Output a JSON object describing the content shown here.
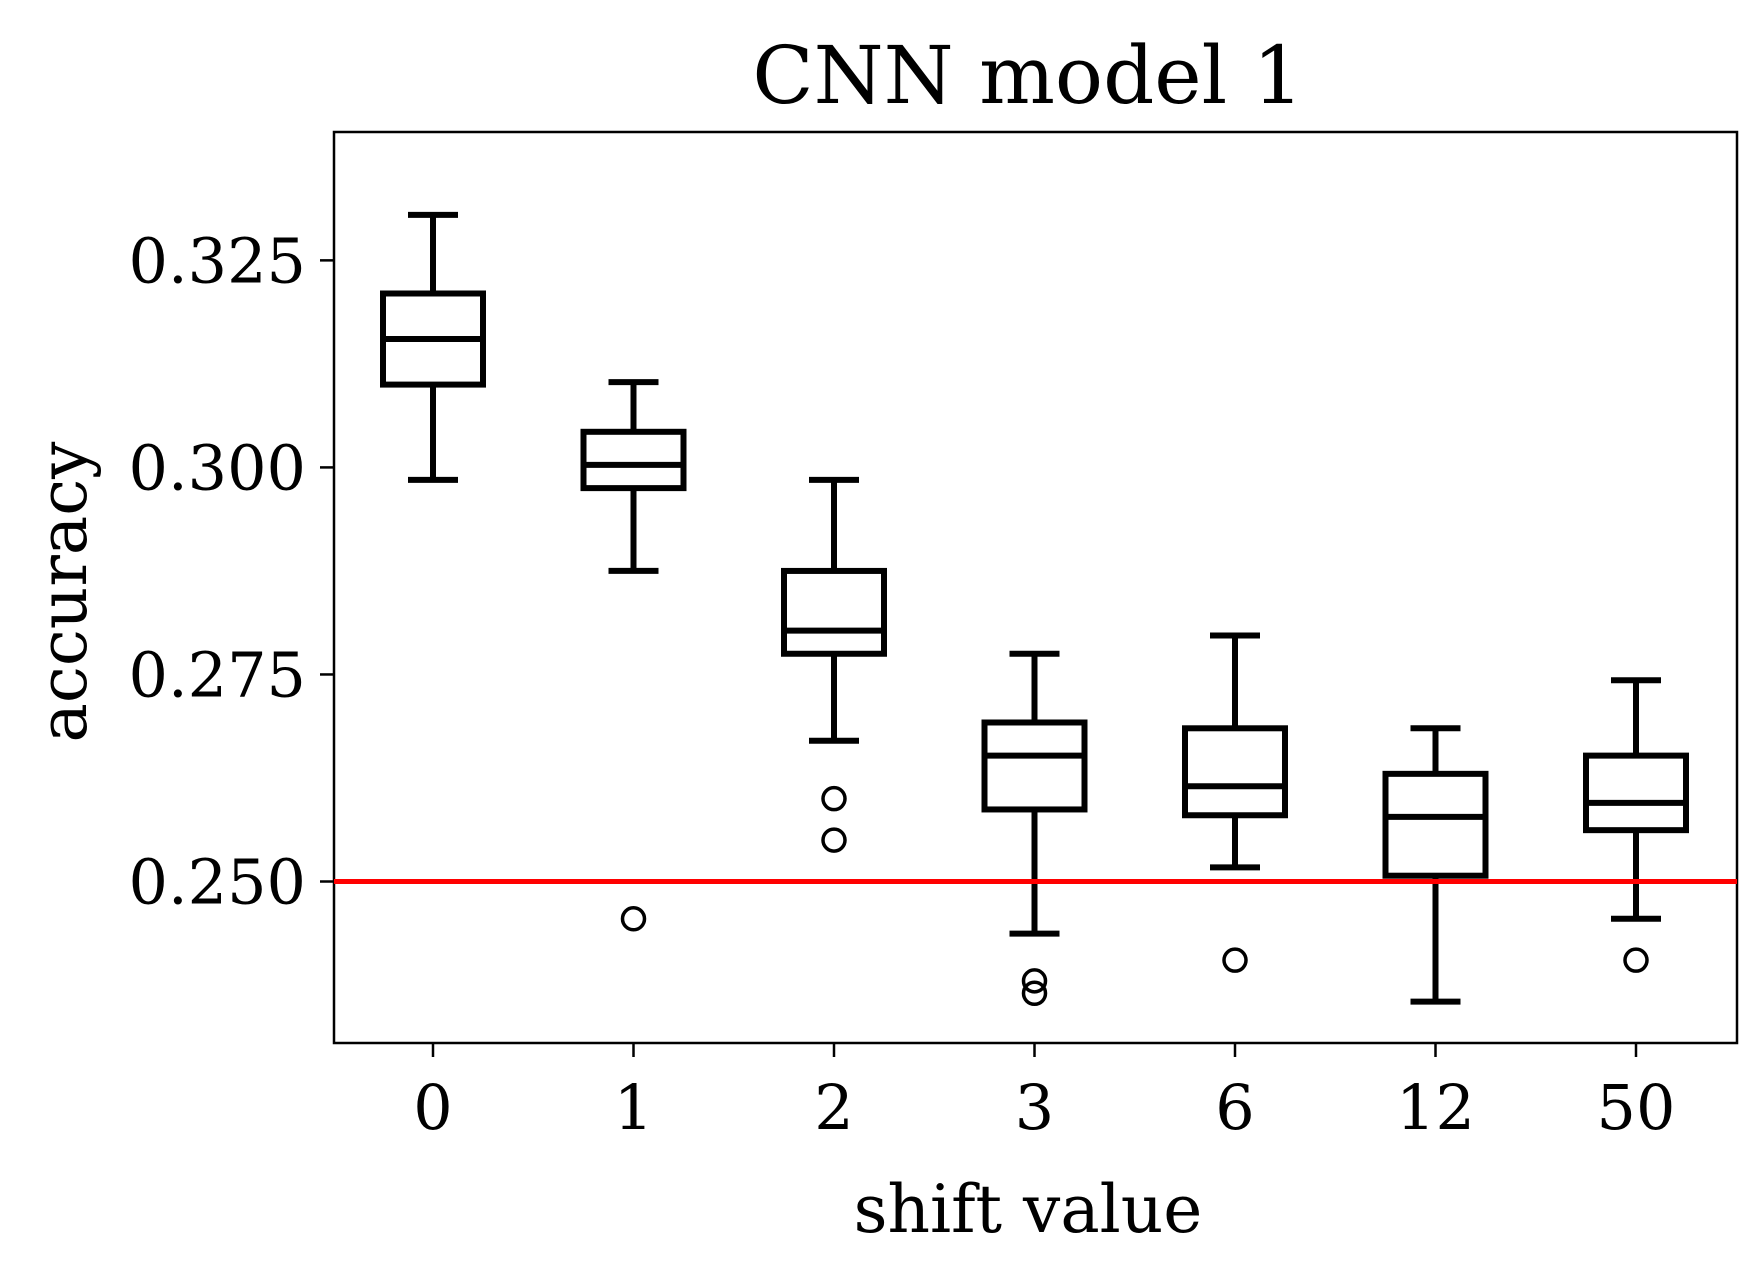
{
  "chart_data": {
    "type": "box",
    "title": "CNN model 1",
    "xlabel": "shift value",
    "ylabel": "accuracy",
    "categories": [
      "0",
      "1",
      "2",
      "3",
      "6",
      "12",
      "50"
    ],
    "ylim": [
      0.2305,
      0.3405
    ],
    "yticks": [
      0.25,
      0.275,
      0.3,
      0.325
    ],
    "ytick_labels": [
      "0.250",
      "0.275",
      "0.300",
      "0.325"
    ],
    "grid": false,
    "reference_line": {
      "y": 0.25,
      "color": "#ff0000"
    },
    "boxes": [
      {
        "category": "0",
        "whisker_low": 0.2985,
        "q1": 0.31,
        "median": 0.3155,
        "q3": 0.321,
        "whisker_high": 0.3305,
        "outliers": []
      },
      {
        "category": "1",
        "whisker_low": 0.2875,
        "q1": 0.2975,
        "median": 0.3003,
        "q3": 0.3043,
        "whisker_high": 0.3103,
        "outliers": [
          0.2455
        ]
      },
      {
        "category": "2",
        "whisker_low": 0.267,
        "q1": 0.2775,
        "median": 0.2803,
        "q3": 0.2875,
        "whisker_high": 0.2985,
        "outliers": [
          0.26,
          0.255
        ]
      },
      {
        "category": "3",
        "whisker_low": 0.2437,
        "q1": 0.2587,
        "median": 0.2652,
        "q3": 0.2692,
        "whisker_high": 0.2775,
        "outliers": [
          0.238,
          0.2365
        ]
      },
      {
        "category": "6",
        "whisker_low": 0.2517,
        "q1": 0.258,
        "median": 0.2615,
        "q3": 0.2685,
        "whisker_high": 0.2797,
        "outliers": [
          0.2405
        ]
      },
      {
        "category": "12",
        "whisker_low": 0.2355,
        "q1": 0.2507,
        "median": 0.2578,
        "q3": 0.263,
        "whisker_high": 0.2685,
        "outliers": []
      },
      {
        "category": "50",
        "whisker_low": 0.2455,
        "q1": 0.2562,
        "median": 0.2595,
        "q3": 0.2652,
        "whisker_high": 0.2743,
        "outliers": [
          0.2405
        ]
      }
    ]
  }
}
